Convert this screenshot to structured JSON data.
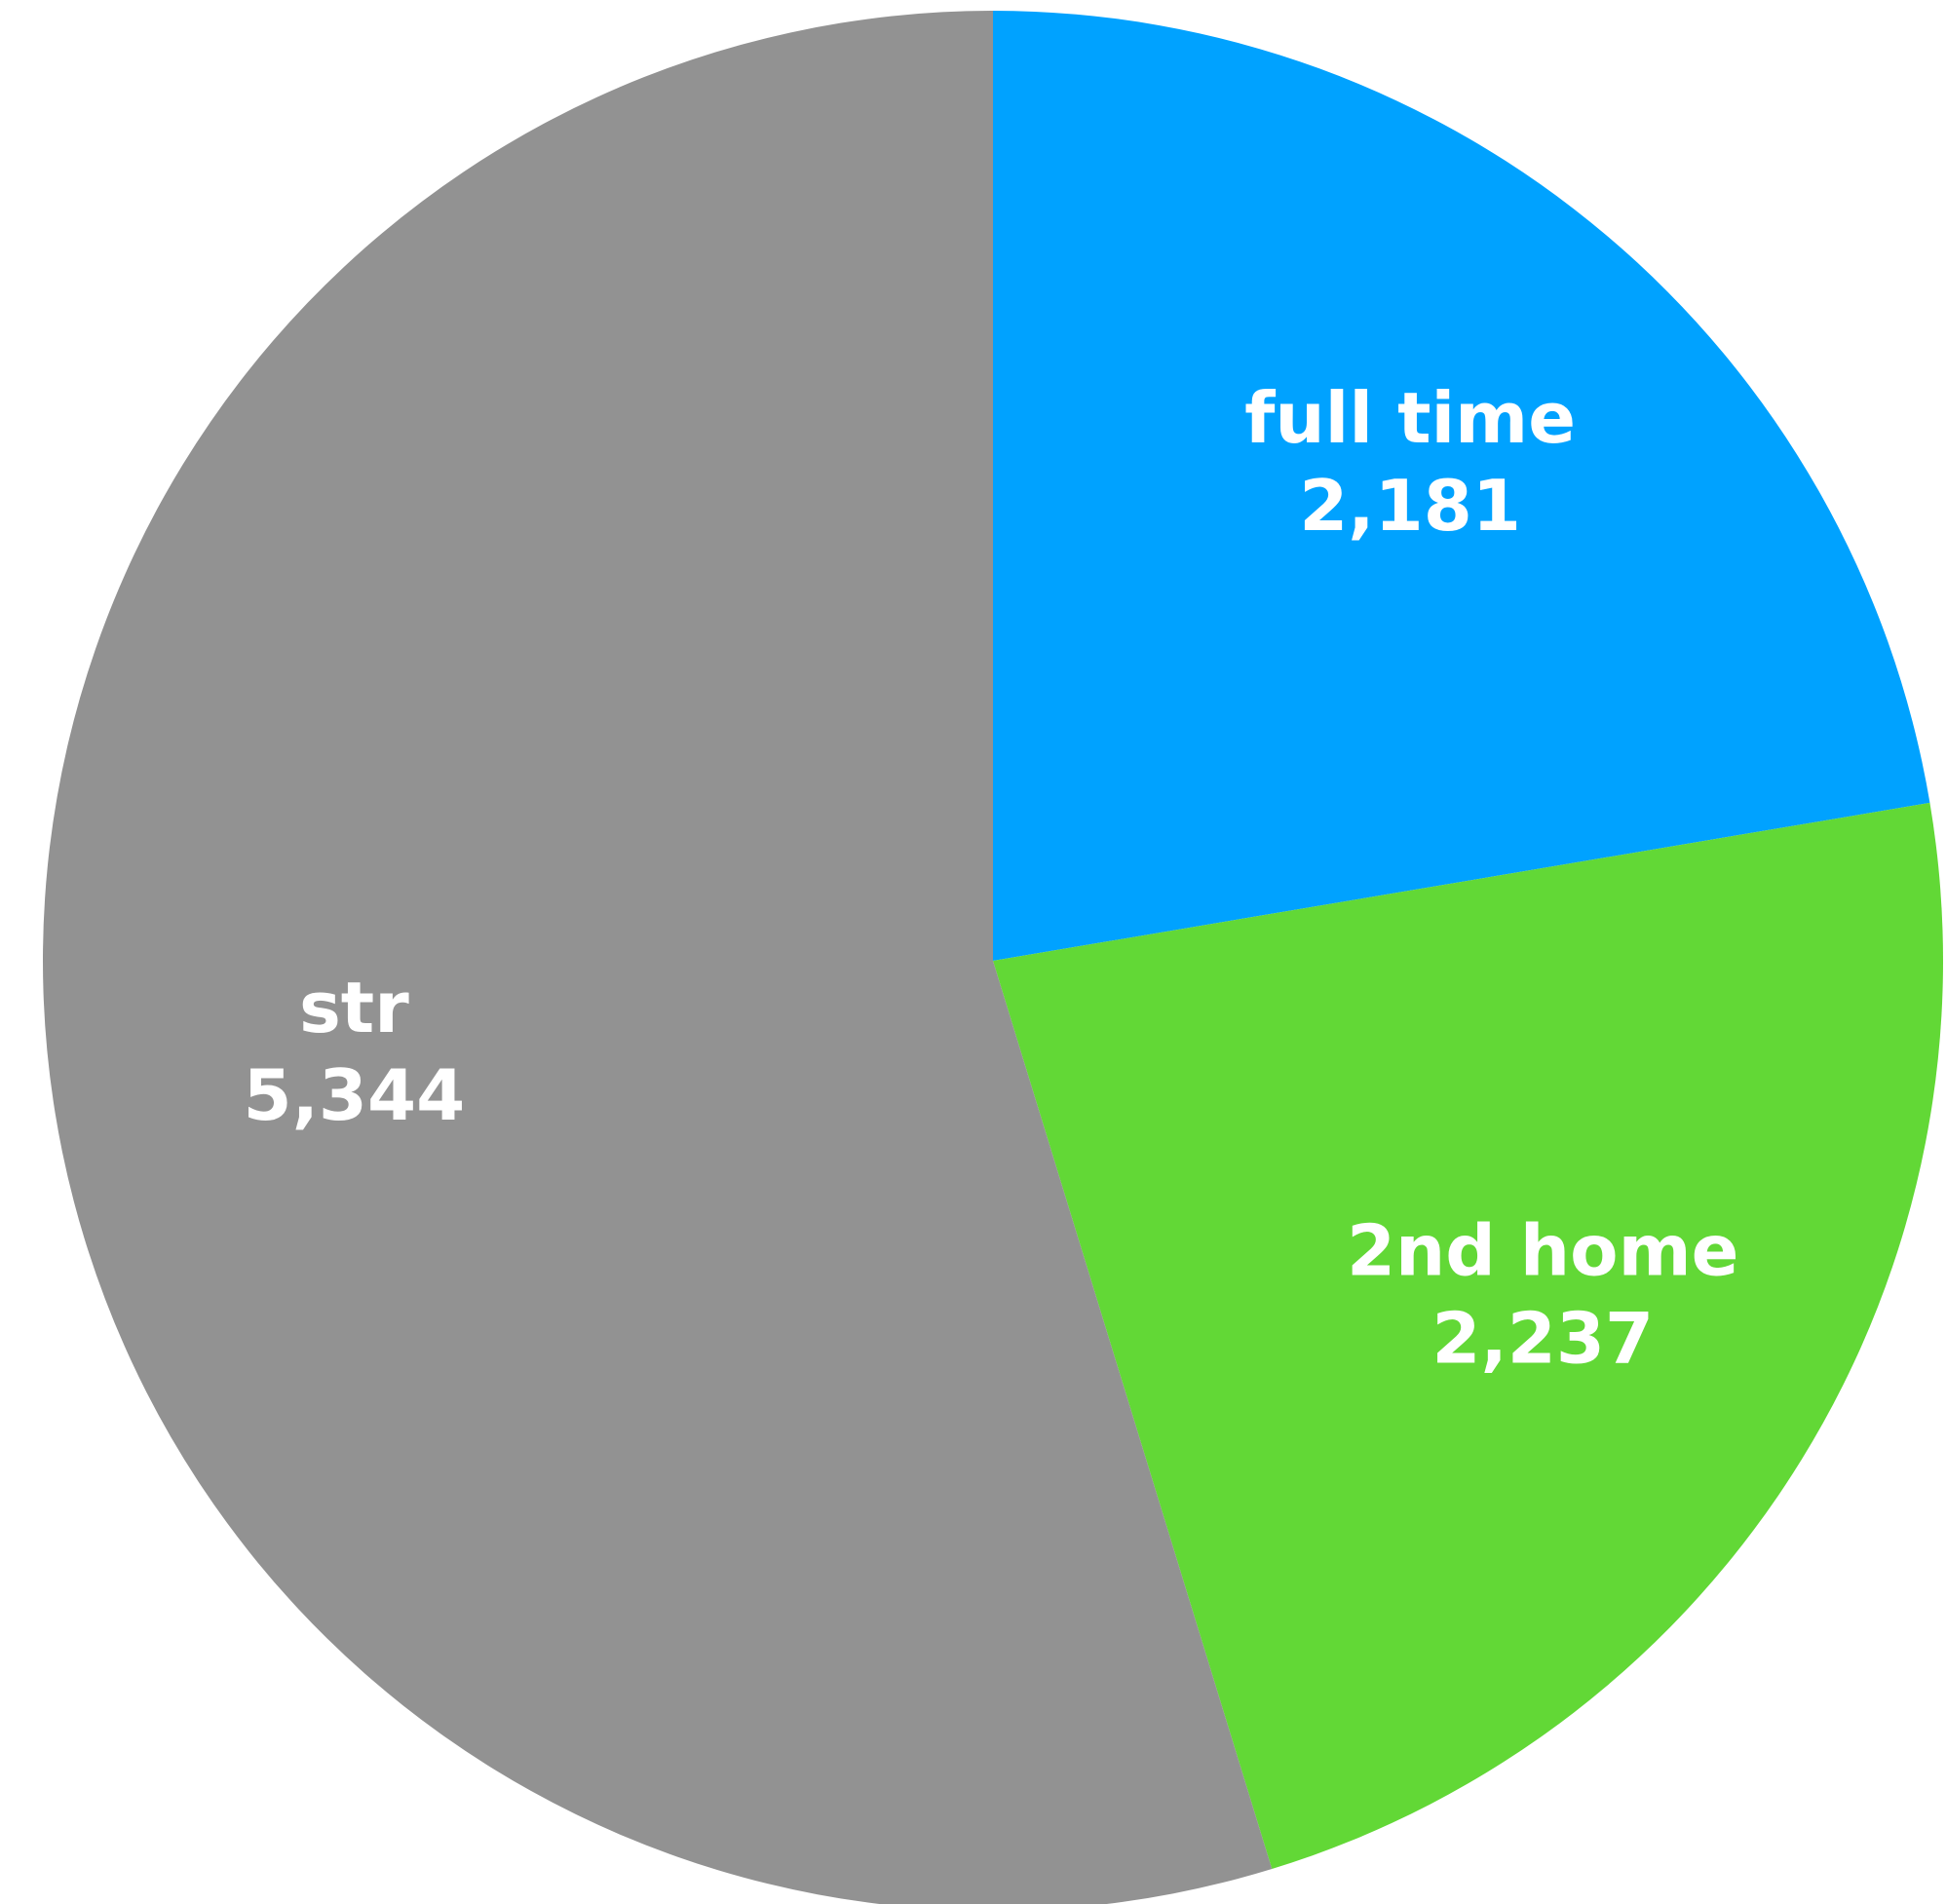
{
  "chart_data": {
    "type": "pie",
    "categories": [
      "full time",
      "2nd home",
      "str"
    ],
    "values": [
      2181,
      2237,
      5344
    ],
    "value_labels": [
      "2,181",
      "2,237",
      "5,344"
    ],
    "colors": [
      "#00a2ff",
      "#62d836",
      "#929292"
    ]
  }
}
